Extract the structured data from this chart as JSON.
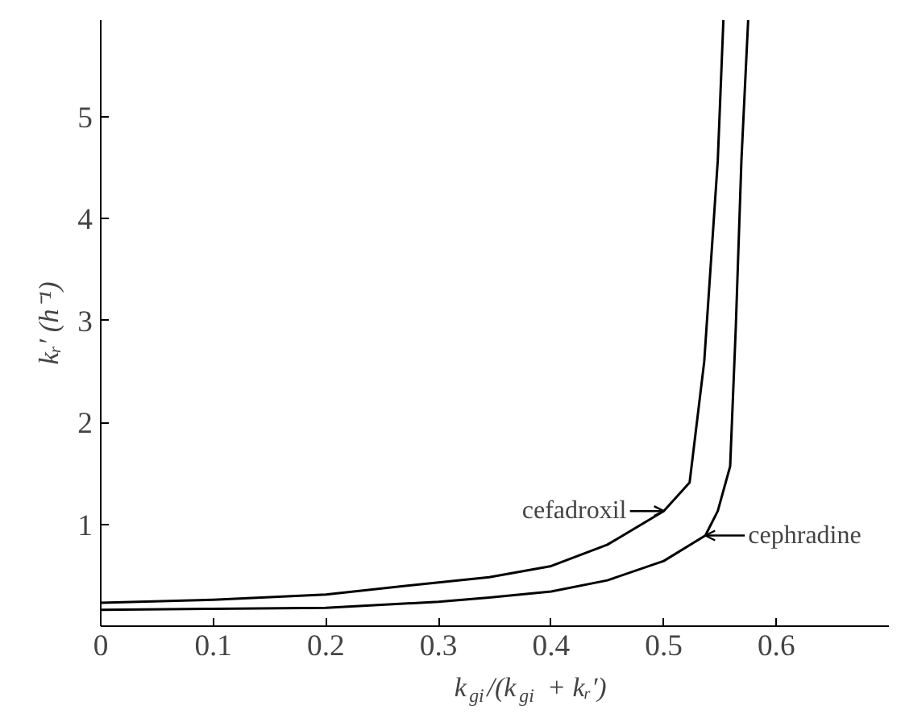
{
  "chart_data": {
    "type": "line",
    "xlabel": "k$_{gi}$/(k$_{gi}$ + kᵣ′)",
    "ylabel": "kᵣ′ (h⁻¹)",
    "xlim": [
      0,
      0.7
    ],
    "ylim": [
      0,
      5.95
    ],
    "xticks": [
      0,
      0.1,
      0.2,
      0.3,
      0.4,
      0.5,
      0.6
    ],
    "yticks": [
      1,
      2,
      3,
      4,
      5
    ],
    "grid": false,
    "marker": "none",
    "line_style": "solid",
    "series": [
      {
        "color": "#000000",
        "x": [
          0,
          0.1,
          0.2,
          0.3,
          0.345,
          0.4,
          0.45,
          0.5,
          0.523,
          0.536,
          0.548,
          0.553
        ],
        "values": [
          0.23,
          0.26,
          0.31,
          0.43,
          0.48,
          0.59,
          0.8,
          1.13,
          1.41,
          2.6,
          4.57,
          5.95
        ]
      },
      {
        "color": "#000000",
        "x": [
          0,
          0.1,
          0.2,
          0.3,
          0.345,
          0.4,
          0.45,
          0.5,
          0.537,
          0.548,
          0.559,
          0.564,
          0.569,
          0.575
        ],
        "values": [
          0.16,
          0.17,
          0.18,
          0.24,
          0.28,
          0.34,
          0.45,
          0.64,
          0.89,
          1.13,
          1.57,
          2.93,
          4.57,
          5.95
        ]
      }
    ],
    "annotations": [
      {
        "text": "cefadroxil",
        "x": 0.5,
        "y": 1.13
      },
      {
        "text": "cephradine",
        "x": 0.537,
        "y": 0.89
      }
    ]
  }
}
